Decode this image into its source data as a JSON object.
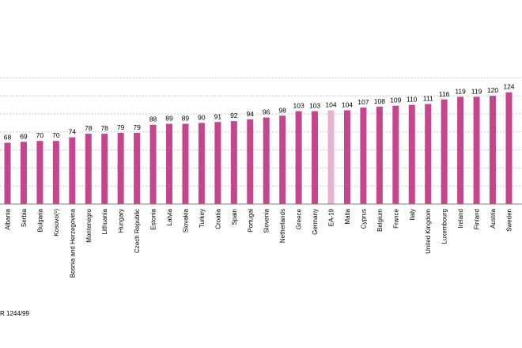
{
  "chart_data": {
    "type": "bar",
    "title": "",
    "xlabel": "",
    "ylabel": "",
    "ylim": [
      0,
      140
    ],
    "grid": true,
    "categories": [
      "Albania",
      "Serbia",
      "Bulgaria",
      "Kosovo(¹)",
      "Bosnia and Herzegovina",
      "Montenegro",
      "Lithuania",
      "Hungary",
      "Czech Republic",
      "Estonia",
      "Latvia",
      "Slovakia",
      "Turkey",
      "Croatia",
      "Spain",
      "Portugal",
      "Slovenia",
      "Netherlands",
      "Greece",
      "Germany",
      "EA-19",
      "Malta",
      "Cyprus",
      "Belgium",
      "France",
      "Italy",
      "United Kingdom",
      "Luxembourg",
      "Ireland",
      "Finland",
      "Austria",
      "Sweden"
    ],
    "values": [
      68,
      69,
      70,
      70,
      74,
      78,
      78,
      79,
      79,
      88,
      89,
      89,
      90,
      91,
      92,
      94,
      96,
      98,
      103,
      103,
      104,
      104,
      107,
      108,
      109,
      110,
      111,
      116,
      119,
      119,
      120,
      124
    ],
    "highlight_category": "EA-19",
    "colors": {
      "bar": "#c5468f",
      "highlight": "#e8b2d3"
    }
  },
  "footnote": "R 1244/99"
}
